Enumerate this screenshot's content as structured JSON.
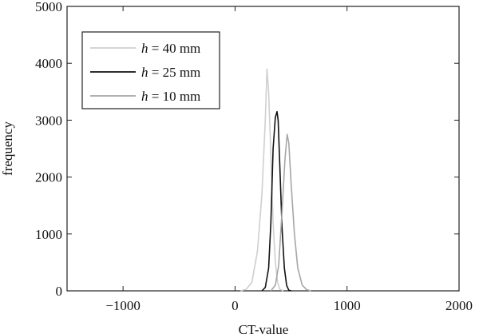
{
  "chart_data": {
    "type": "line",
    "title": "",
    "xlabel": "CT-value",
    "ylabel": "frequency",
    "xlim": [
      -1500,
      2000
    ],
    "ylim": [
      0,
      5000
    ],
    "grid": false,
    "legend_placement": "top-left",
    "x_ticks": [
      -1000,
      0,
      1000,
      2000
    ],
    "y_ticks": [
      0,
      1000,
      2000,
      3000,
      4000,
      5000
    ],
    "series": [
      {
        "name": "h = 40 mm",
        "name_var": "h",
        "name_rest": " = 40 mm",
        "color": "#cfcfcf",
        "points": [
          [
            50,
            0
          ],
          [
            100,
            30
          ],
          [
            150,
            150
          ],
          [
            200,
            700
          ],
          [
            240,
            1700
          ],
          [
            270,
            3000
          ],
          [
            285,
            3900
          ],
          [
            300,
            3500
          ],
          [
            320,
            2400
          ],
          [
            340,
            1200
          ],
          [
            360,
            500
          ],
          [
            380,
            150
          ],
          [
            400,
            30
          ],
          [
            430,
            0
          ]
        ]
      },
      {
        "name": "h = 25 mm",
        "name_var": "h",
        "name_rest": " = 25 mm",
        "color": "#111111",
        "points": [
          [
            240,
            0
          ],
          [
            270,
            60
          ],
          [
            300,
            400
          ],
          [
            320,
            1200
          ],
          [
            340,
            2500
          ],
          [
            360,
            3050
          ],
          [
            375,
            3150
          ],
          [
            385,
            3000
          ],
          [
            400,
            2200
          ],
          [
            420,
            1100
          ],
          [
            440,
            400
          ],
          [
            460,
            100
          ],
          [
            480,
            10
          ],
          [
            500,
            0
          ]
        ]
      },
      {
        "name": "h = 10 mm",
        "name_var": "h",
        "name_rest": " = 10 mm",
        "color": "#a6a6a6",
        "points": [
          [
            320,
            0
          ],
          [
            360,
            100
          ],
          [
            390,
            450
          ],
          [
            420,
            1400
          ],
          [
            445,
            2300
          ],
          [
            465,
            2750
          ],
          [
            480,
            2600
          ],
          [
            500,
            1900
          ],
          [
            530,
            1000
          ],
          [
            560,
            400
          ],
          [
            600,
            100
          ],
          [
            640,
            20
          ],
          [
            680,
            0
          ]
        ]
      }
    ]
  }
}
